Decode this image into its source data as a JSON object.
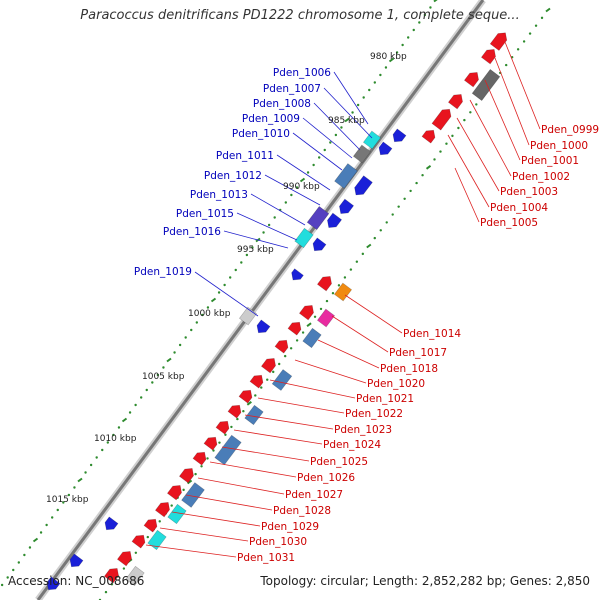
{
  "title": "Paracoccus denitrificans PD1222 chromosome 1, complete seque...",
  "footer": {
    "accession": "Accession: NC_008686",
    "summary": "Topology: circular; Length: 2,852,282 bp; Genes: 2,850"
  },
  "colors": {
    "forward": "#e8141e",
    "reverse": "#1a20d8",
    "rna": "#4a7db8",
    "label_forward": "#cc0000",
    "label_reverse": "#0000bb",
    "tick": "#2e8b2e",
    "backbone": "#777777"
  },
  "kbp_labels": [
    "980 kbp",
    "985 kbp",
    "990 kbp",
    "995 kbp",
    "1000 kbp",
    "1005 kbp",
    "1010 kbp",
    "1015 kbp"
  ],
  "reverse_labels": [
    "Pden_1006",
    "Pden_1007",
    "Pden_1008",
    "Pden_1009",
    "Pden_1010",
    "Pden_1011",
    "Pden_1012",
    "Pden_1013",
    "Pden_1015",
    "Pden_1016",
    "Pden_1019"
  ],
  "forward_labels": [
    "Pden_0999",
    "Pden_1000",
    "Pden_1001",
    "Pden_1002",
    "Pden_1003",
    "Pden_1004",
    "Pden_1005",
    "Pden_1014",
    "Pden_1017",
    "Pden_1018",
    "Pden_1020",
    "Pden_1021",
    "Pden_1022",
    "Pden_1023",
    "Pden_1024",
    "Pden_1025",
    "Pden_1026",
    "Pden_1027",
    "Pden_1028",
    "Pden_1029",
    "Pden_1030",
    "Pden_1031"
  ]
}
